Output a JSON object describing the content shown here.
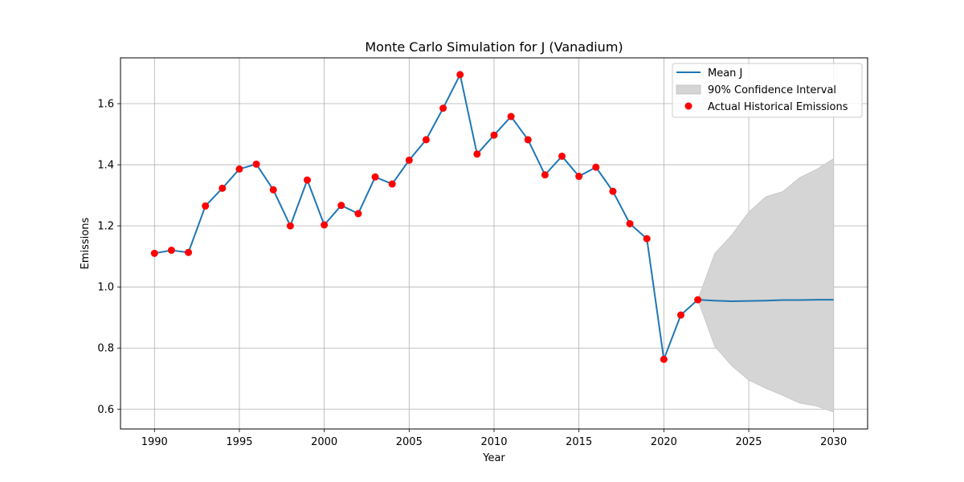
{
  "chart_data": {
    "type": "line",
    "title": "Monte Carlo Simulation for J (Vanadium)",
    "xlabel": "Year",
    "ylabel": "Emissions",
    "xlim": [
      1988,
      2032
    ],
    "ylim": [
      0.535,
      1.75
    ],
    "xticks": [
      1990,
      1995,
      2000,
      2005,
      2010,
      2015,
      2020,
      2025,
      2030
    ],
    "yticks": [
      0.6,
      0.8,
      1.0,
      1.2,
      1.4,
      1.6
    ],
    "ytick_labels": [
      "0.6",
      "0.8",
      "1.0",
      "1.2",
      "1.4",
      "1.6"
    ],
    "grid": true,
    "legend_position": "top-right",
    "colors": {
      "mean": "#1f77b4",
      "ci": "#d5d5d5",
      "actual": "#ff0000"
    },
    "legend": [
      {
        "label": "Mean J",
        "kind": "line"
      },
      {
        "label": "90% Confidence Interval",
        "kind": "patch"
      },
      {
        "label": "Actual Historical Emissions",
        "kind": "marker"
      }
    ],
    "series": [
      {
        "name": "Mean J",
        "x": [
          1990,
          1991,
          1992,
          1993,
          1994,
          1995,
          1996,
          1997,
          1998,
          1999,
          2000,
          2001,
          2002,
          2003,
          2004,
          2005,
          2006,
          2007,
          2008,
          2009,
          2010,
          2011,
          2012,
          2013,
          2014,
          2015,
          2016,
          2017,
          2018,
          2019,
          2020,
          2021,
          2022,
          2023,
          2024,
          2025,
          2026,
          2027,
          2028,
          2029,
          2030
        ],
        "y": [
          1.11,
          1.12,
          1.113,
          1.265,
          1.323,
          1.386,
          1.402,
          1.318,
          1.2,
          1.35,
          1.203,
          1.267,
          1.24,
          1.36,
          1.337,
          1.415,
          1.482,
          1.585,
          1.695,
          1.435,
          1.497,
          1.558,
          1.482,
          1.367,
          1.428,
          1.362,
          1.392,
          1.313,
          1.207,
          1.158,
          0.763,
          0.908,
          0.958,
          0.955,
          0.953,
          0.954,
          0.955,
          0.957,
          0.957,
          0.958,
          0.958
        ]
      },
      {
        "name": "90% Confidence Interval",
        "x": [
          2022,
          2023,
          2024,
          2025,
          2026,
          2027,
          2028,
          2029,
          2030
        ],
        "lower": [
          0.958,
          0.805,
          0.742,
          0.695,
          0.668,
          0.645,
          0.62,
          0.61,
          0.59
        ],
        "upper": [
          0.958,
          1.11,
          1.17,
          1.245,
          1.295,
          1.312,
          1.358,
          1.385,
          1.42
        ]
      },
      {
        "name": "Actual Historical Emissions",
        "x": [
          1990,
          1991,
          1992,
          1993,
          1994,
          1995,
          1996,
          1997,
          1998,
          1999,
          2000,
          2001,
          2002,
          2003,
          2004,
          2005,
          2006,
          2007,
          2008,
          2009,
          2010,
          2011,
          2012,
          2013,
          2014,
          2015,
          2016,
          2017,
          2018,
          2019,
          2020,
          2021,
          2022
        ],
        "y": [
          1.11,
          1.12,
          1.113,
          1.265,
          1.323,
          1.386,
          1.402,
          1.318,
          1.2,
          1.35,
          1.203,
          1.267,
          1.24,
          1.36,
          1.337,
          1.415,
          1.482,
          1.585,
          1.695,
          1.435,
          1.497,
          1.558,
          1.482,
          1.367,
          1.428,
          1.362,
          1.392,
          1.313,
          1.207,
          1.158,
          0.763,
          0.908,
          0.958
        ]
      }
    ]
  }
}
